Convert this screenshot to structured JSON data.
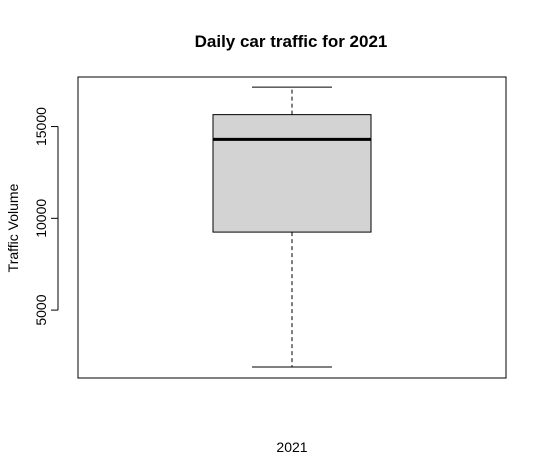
{
  "chart_data": {
    "type": "boxplot",
    "title": "Daily car traffic for 2021",
    "xlabel": "2021",
    "ylabel": "Traffic Volume",
    "ylim": [
      1300,
      17700
    ],
    "yticks": [
      5000,
      10000,
      15000
    ],
    "ytick_labels": [
      "5000",
      "10000",
      "15000"
    ],
    "grid": false,
    "series": [
      {
        "min": 1900,
        "q1": 9250,
        "median": 14300,
        "q3": 15650,
        "max": 17150
      }
    ],
    "colors": {
      "box_fill": "#d3d3d3",
      "stroke": "#000000"
    }
  }
}
